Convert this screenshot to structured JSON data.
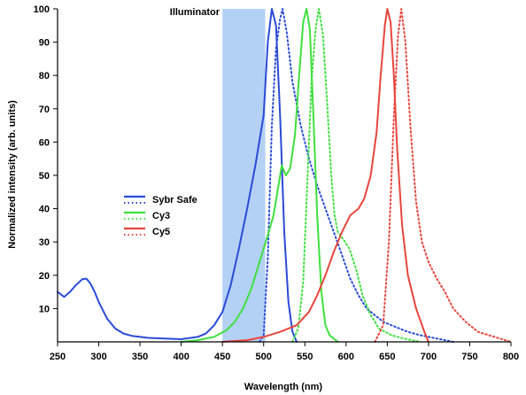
{
  "chart_data": {
    "type": "line",
    "title": "",
    "xlabel": "Wavelength (nm)",
    "ylabel": "Normalized intensity (arb. units)",
    "xlim": [
      250,
      800
    ],
    "ylim": [
      0,
      100
    ],
    "xticks": [
      250,
      300,
      350,
      400,
      450,
      500,
      550,
      600,
      650,
      700,
      750,
      800
    ],
    "yticks": [
      10,
      20,
      30,
      40,
      50,
      60,
      70,
      80,
      90,
      100
    ],
    "grid": false,
    "legend_position": "center-left",
    "illuminator": {
      "label": "Illuminator",
      "xmin": 450,
      "xmax": 502,
      "color": "#b3d1f5"
    },
    "series": [
      {
        "name": "Sybr Safe",
        "kind": "excitation",
        "style": "solid",
        "color": "#2a4bd8",
        "points": [
          [
            250,
            15
          ],
          [
            258,
            13.5
          ],
          [
            265,
            15
          ],
          [
            272,
            17
          ],
          [
            280,
            18.8
          ],
          [
            285,
            19
          ],
          [
            290,
            17.5
          ],
          [
            295,
            15
          ],
          [
            300,
            12
          ],
          [
            310,
            7
          ],
          [
            320,
            4
          ],
          [
            330,
            2.5
          ],
          [
            340,
            1.8
          ],
          [
            360,
            1.2
          ],
          [
            380,
            1
          ],
          [
            400,
            0.8
          ],
          [
            420,
            1.5
          ],
          [
            430,
            2.5
          ],
          [
            440,
            5
          ],
          [
            450,
            9
          ],
          [
            460,
            17
          ],
          [
            470,
            28
          ],
          [
            480,
            40
          ],
          [
            490,
            53
          ],
          [
            500,
            68
          ],
          [
            505,
            90
          ],
          [
            510,
            100
          ],
          [
            515,
            95
          ],
          [
            520,
            68
          ],
          [
            525,
            33
          ],
          [
            530,
            12
          ],
          [
            535,
            3
          ],
          [
            540,
            0
          ]
        ]
      },
      {
        "name": "Sybr Safe",
        "kind": "emission",
        "style": "dotted",
        "color": "#2a4bd8",
        "points": [
          [
            495,
            0
          ],
          [
            500,
            2
          ],
          [
            505,
            25
          ],
          [
            510,
            65
          ],
          [
            515,
            88
          ],
          [
            520,
            97
          ],
          [
            523,
            100
          ],
          [
            528,
            93
          ],
          [
            535,
            78
          ],
          [
            545,
            65
          ],
          [
            555,
            55
          ],
          [
            565,
            47
          ],
          [
            575,
            40
          ],
          [
            585,
            33
          ],
          [
            595,
            26
          ],
          [
            605,
            19
          ],
          [
            615,
            14
          ],
          [
            625,
            10
          ],
          [
            635,
            8
          ],
          [
            645,
            6
          ],
          [
            655,
            5
          ],
          [
            665,
            4
          ],
          [
            675,
            3
          ],
          [
            690,
            2
          ],
          [
            710,
            1
          ],
          [
            730,
            0
          ]
        ]
      },
      {
        "name": "Cy3",
        "kind": "excitation",
        "style": "solid",
        "color": "#3ee03e",
        "points": [
          [
            400,
            0
          ],
          [
            420,
            0.5
          ],
          [
            440,
            1.5
          ],
          [
            455,
            3.5
          ],
          [
            465,
            6
          ],
          [
            475,
            10
          ],
          [
            485,
            16
          ],
          [
            495,
            24
          ],
          [
            505,
            32
          ],
          [
            512,
            38
          ],
          [
            518,
            47
          ],
          [
            522,
            53
          ],
          [
            527,
            50
          ],
          [
            532,
            52
          ],
          [
            538,
            62
          ],
          [
            543,
            80
          ],
          [
            548,
            96
          ],
          [
            552,
            100
          ],
          [
            556,
            94
          ],
          [
            560,
            70
          ],
          [
            565,
            38
          ],
          [
            570,
            15
          ],
          [
            575,
            5
          ],
          [
            580,
            2
          ],
          [
            590,
            0
          ]
        ]
      },
      {
        "name": "Cy3",
        "kind": "emission",
        "style": "dotted",
        "color": "#3ee03e",
        "points": [
          [
            535,
            0
          ],
          [
            542,
            4
          ],
          [
            548,
            18
          ],
          [
            553,
            48
          ],
          [
            558,
            78
          ],
          [
            563,
            94
          ],
          [
            567,
            100
          ],
          [
            572,
            92
          ],
          [
            577,
            72
          ],
          [
            582,
            50
          ],
          [
            586,
            38
          ],
          [
            590,
            33
          ],
          [
            596,
            31
          ],
          [
            604,
            28
          ],
          [
            612,
            22
          ],
          [
            620,
            14
          ],
          [
            630,
            8
          ],
          [
            640,
            4
          ],
          [
            655,
            2
          ],
          [
            670,
            1
          ],
          [
            690,
            0
          ]
        ]
      },
      {
        "name": "Cy5",
        "kind": "excitation",
        "style": "solid",
        "color": "#e8453c",
        "points": [
          [
            450,
            0
          ],
          [
            480,
            0.5
          ],
          [
            500,
            1.5
          ],
          [
            520,
            3
          ],
          [
            540,
            5
          ],
          [
            555,
            9
          ],
          [
            565,
            14
          ],
          [
            575,
            20
          ],
          [
            585,
            27
          ],
          [
            595,
            33
          ],
          [
            605,
            38
          ],
          [
            615,
            40
          ],
          [
            622,
            43
          ],
          [
            630,
            50
          ],
          [
            637,
            63
          ],
          [
            642,
            80
          ],
          [
            647,
            95
          ],
          [
            650,
            100
          ],
          [
            654,
            96
          ],
          [
            658,
            80
          ],
          [
            662,
            58
          ],
          [
            668,
            35
          ],
          [
            675,
            20
          ],
          [
            685,
            10
          ],
          [
            695,
            3
          ],
          [
            700,
            0
          ]
        ]
      },
      {
        "name": "Cy5",
        "kind": "emission",
        "style": "dotted",
        "color": "#e8453c",
        "points": [
          [
            635,
            0
          ],
          [
            645,
            5
          ],
          [
            652,
            30
          ],
          [
            658,
            68
          ],
          [
            663,
            92
          ],
          [
            667,
            100
          ],
          [
            672,
            90
          ],
          [
            678,
            65
          ],
          [
            685,
            42
          ],
          [
            692,
            30
          ],
          [
            700,
            24
          ],
          [
            710,
            19
          ],
          [
            720,
            15
          ],
          [
            730,
            10
          ],
          [
            745,
            6
          ],
          [
            760,
            3
          ],
          [
            780,
            1.5
          ],
          [
            800,
            0
          ]
        ]
      }
    ],
    "legend": [
      {
        "label": "Sybr Safe",
        "color": "#2a4bd8"
      },
      {
        "label": "Cy3",
        "color": "#3ee03e"
      },
      {
        "label": "Cy5",
        "color": "#e8453c"
      }
    ]
  }
}
